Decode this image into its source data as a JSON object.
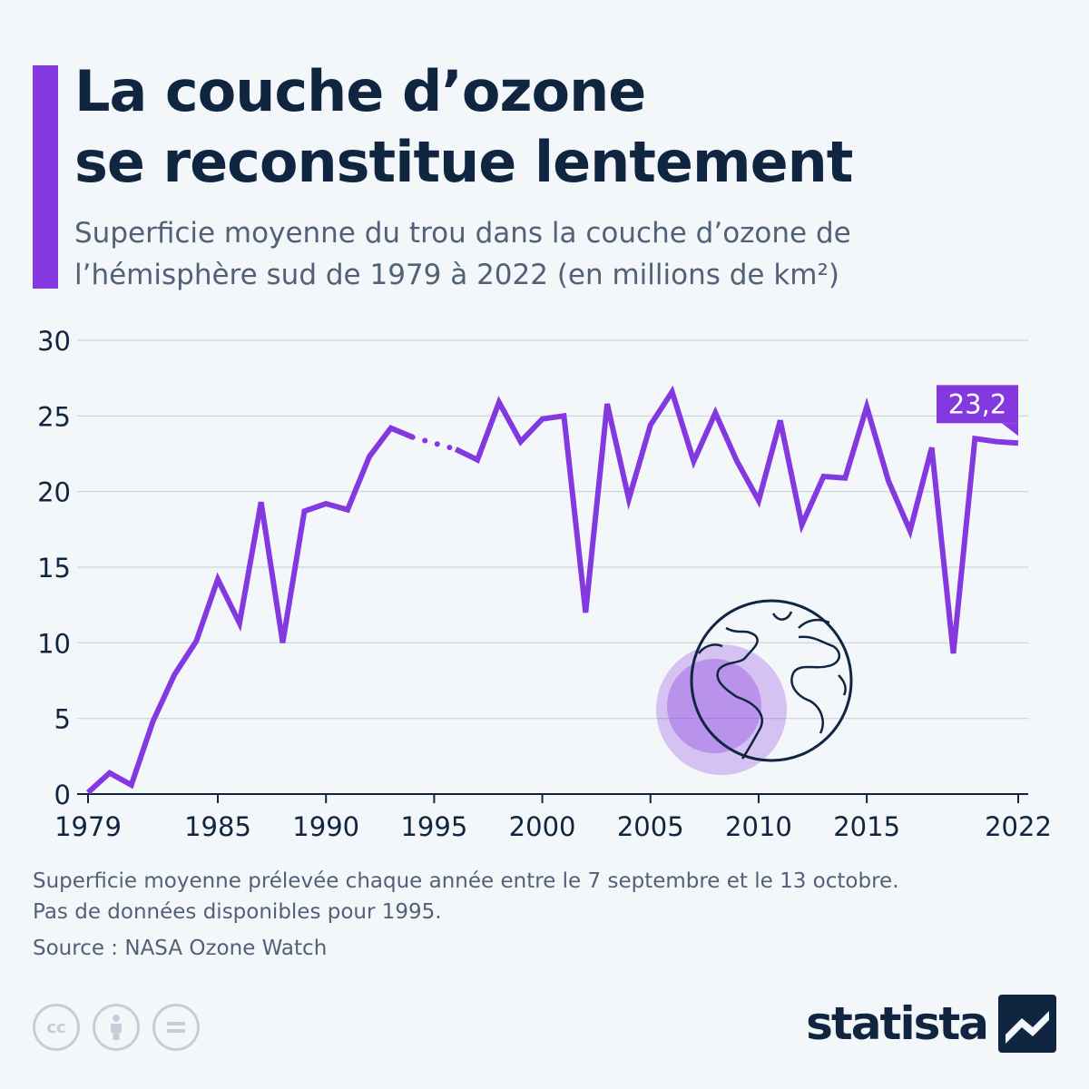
{
  "title_line1": "La couche d’ozone",
  "title_line2": "se reconstitue lentement",
  "subtitle_line1": "Superficie moyenne du trou dans la couche d’ozone de",
  "subtitle_line2": "l’hémisphère sud de 1979 à 2022 (en millions de km²)",
  "footnote_line1": "Superficie moyenne prélevée chaque année entre le 7 septembre et le 13 octobre.",
  "footnote_line2": "Pas de données disponibles pour 1995.",
  "source": "Source : NASA Ozone Watch",
  "brand": "statista",
  "colors": {
    "accent": "#8439e0",
    "text": "#0f2540",
    "muted": "#506178",
    "grid": "#c9d1da"
  },
  "icons": [
    "cc-icon",
    "attribution-icon",
    "no-derivatives-icon",
    "globe-icon",
    "statista-logo-icon"
  ],
  "chart_data": {
    "type": "line",
    "xlabel": "",
    "ylabel": "",
    "xlim": [
      1979,
      2022
    ],
    "ylim": [
      0,
      30
    ],
    "y_ticks": [
      "0",
      "5",
      "10",
      "15",
      "20",
      "25",
      "30"
    ],
    "x_ticks": [
      {
        "x": 1979,
        "label": "1979"
      },
      {
        "x": 1985,
        "label": "1985"
      },
      {
        "x": 1990,
        "label": "1990"
      },
      {
        "x": 1995,
        "label": "1995"
      },
      {
        "x": 2000,
        "label": "2000"
      },
      {
        "x": 2005,
        "label": "2005"
      },
      {
        "x": 2010,
        "label": "2010"
      },
      {
        "x": 2015,
        "label": "2015"
      },
      {
        "x": 2022,
        "label": "2022"
      }
    ],
    "grid": true,
    "missing_years": [
      1995
    ],
    "series": [
      {
        "x": [
          1979,
          1980,
          1981,
          1982,
          1983,
          1984,
          1985,
          1986,
          1987,
          1988,
          1989,
          1990,
          1991,
          1992,
          1993,
          1994,
          1996,
          1997,
          1998,
          1999,
          2000,
          2001,
          2002,
          2003,
          2004,
          2005,
          2006,
          2007,
          2008,
          2009,
          2010,
          2011,
          2012,
          2013,
          2014,
          2015,
          2016,
          2017,
          2018,
          2019,
          2020,
          2021,
          2022
        ],
        "values": [
          0.1,
          1.4,
          0.6,
          4.8,
          7.9,
          10.1,
          14.2,
          11.3,
          19.3,
          10.0,
          18.7,
          19.2,
          18.8,
          22.3,
          24.2,
          23.6,
          22.8,
          22.1,
          25.9,
          23.3,
          24.8,
          25.0,
          12.0,
          25.8,
          19.5,
          24.4,
          26.6,
          22.0,
          25.2,
          22.0,
          19.4,
          24.7,
          17.8,
          21.0,
          20.9,
          25.6,
          20.7,
          17.4,
          22.9,
          9.3,
          23.5,
          23.3,
          23.2
        ]
      }
    ],
    "annotation": {
      "x": 2022,
      "value": 23.2,
      "label": "23,2"
    }
  }
}
